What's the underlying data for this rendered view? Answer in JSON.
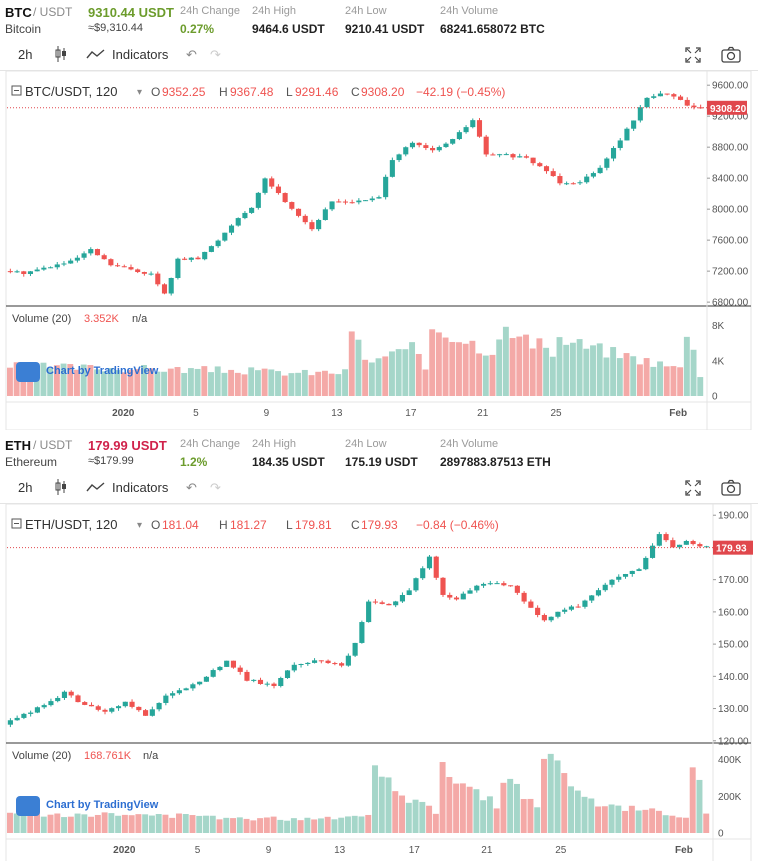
{
  "panels": [
    {
      "symbol": "BTC",
      "pair_suffix": "/ USDT",
      "price": "9310.44 USDT",
      "price_color": "#6c9c2c",
      "name": "Bitcoin",
      "price_approx": "≈$9,310.44",
      "change_label": "24h Change",
      "change_value": "0.27%",
      "change_color": "#6c9c2c",
      "high_label": "24h High",
      "high_value": "9464.6 USDT",
      "low_label": "24h Low",
      "low_value": "9210.41 USDT",
      "volume_label": "24h Volume",
      "volume_value": "68241.658072 BTC",
      "toolbar": {
        "interval": "2h",
        "indicators": "Indicators"
      },
      "legend": {
        "symbol": "BTC/USDT, 120",
        "o_label": "O",
        "o": "9352.25",
        "h_label": "H",
        "h": "9367.48",
        "l_label": "L",
        "l": "9291.46",
        "c_label": "C",
        "c": "9308.20",
        "change": "−42.19 (−0.45%)"
      },
      "volume_legend": {
        "label": "Volume (20)",
        "value": "3.352K",
        "extra": "n/a"
      },
      "last_price_tag": "9308.20",
      "price_axis": [
        "9600.00",
        "9200.00",
        "8800.00",
        "8400.00",
        "8000.00",
        "7600.00",
        "7200.00",
        "6800.00"
      ],
      "volume_axis": [
        "8K",
        "4K",
        "0"
      ],
      "time_axis": [
        "2020",
        "5",
        "9",
        "13",
        "17",
        "21",
        "25",
        "Feb"
      ],
      "watermark": "Chart by TradingView"
    },
    {
      "symbol": "ETH",
      "pair_suffix": "/ USDT",
      "price": "179.99 USDT",
      "price_color": "#d0224b",
      "name": "Ethereum",
      "price_approx": "≈$179.99",
      "change_label": "24h Change",
      "change_value": "1.2%",
      "change_color": "#6c9c2c",
      "high_label": "24h High",
      "high_value": "184.35 USDT",
      "low_label": "24h Low",
      "low_value": "175.19 USDT",
      "volume_label": "24h Volume",
      "volume_value": "2897883.87513 ETH",
      "toolbar": {
        "interval": "2h",
        "indicators": "Indicators"
      },
      "legend": {
        "symbol": "ETH/USDT, 120",
        "o_label": "O",
        "o": "181.04",
        "h_label": "H",
        "h": "181.27",
        "l_label": "L",
        "l": "179.81",
        "c_label": "C",
        "c": "179.93",
        "change": "−0.84 (−0.46%)"
      },
      "volume_legend": {
        "label": "Volume (20)",
        "value": "168.761K",
        "extra": "n/a"
      },
      "last_price_tag": "179.93",
      "price_axis": [
        "190.00",
        "180.00",
        "170.00",
        "160.00",
        "150.00",
        "140.00",
        "130.00",
        "120.00"
      ],
      "volume_axis": [
        "400K",
        "200K",
        "0"
      ],
      "time_axis": [
        "2020",
        "5",
        "9",
        "13",
        "17",
        "21",
        "25",
        "Feb"
      ],
      "watermark": "Chart by TradingView"
    }
  ],
  "colors": {
    "up": "#26a69a",
    "down": "#ef5350",
    "up_vol": "#a5d6c9",
    "down_vol": "#f4a9a7",
    "lastline": "#e0474c"
  },
  "chart_data": [
    {
      "type": "candlestick",
      "symbol": "BTC/USDT",
      "interval": "120",
      "y_range": [
        6750,
        9680
      ],
      "x_categories": [
        "2020",
        "5",
        "9",
        "13",
        "17",
        "21",
        "25",
        "Feb"
      ],
      "close_path": [
        [
          0,
          7200
        ],
        [
          3,
          7180
        ],
        [
          6,
          7240
        ],
        [
          10,
          7320
        ],
        [
          13,
          7470
        ],
        [
          16,
          7280
        ],
        [
          19,
          7220
        ],
        [
          22,
          7160
        ],
        [
          24,
          6900
        ],
        [
          26,
          7350
        ],
        [
          29,
          7360
        ],
        [
          32,
          7600
        ],
        [
          35,
          7900
        ],
        [
          37,
          8000
        ],
        [
          39,
          8400
        ],
        [
          42,
          8100
        ],
        [
          46,
          7750
        ],
        [
          49,
          8100
        ],
        [
          53,
          8100
        ],
        [
          56,
          8150
        ],
        [
          58,
          8650
        ],
        [
          61,
          8850
        ],
        [
          64,
          8750
        ],
        [
          67,
          8900
        ],
        [
          70,
          9150
        ],
        [
          72,
          8700
        ],
        [
          75,
          8700
        ],
        [
          78,
          8650
        ],
        [
          81,
          8500
        ],
        [
          83,
          8350
        ],
        [
          86,
          8350
        ],
        [
          89,
          8550
        ],
        [
          92,
          8900
        ],
        [
          94,
          9150
        ],
        [
          96,
          9450
        ],
        [
          99,
          9500
        ],
        [
          101,
          9400
        ],
        [
          103,
          9308
        ]
      ],
      "volume_range": [
        0,
        10000
      ],
      "volume_path": [
        [
          0,
          3500
        ],
        [
          20,
          3200
        ],
        [
          34,
          3000
        ],
        [
          43,
          2700
        ],
        [
          50,
          2800
        ],
        [
          51,
          8200
        ],
        [
          53,
          4000
        ],
        [
          60,
          5500
        ],
        [
          62,
          3200
        ],
        [
          63,
          8300
        ],
        [
          72,
          5200
        ],
        [
          73,
          7800
        ],
        [
          81,
          5200
        ],
        [
          82,
          6600
        ],
        [
          100,
          3200
        ],
        [
          101,
          8000
        ],
        [
          103,
          2500
        ]
      ],
      "last_price": 9308.2
    },
    {
      "type": "candlestick",
      "symbol": "ETH/USDT",
      "interval": "120",
      "y_range": [
        119,
        191
      ],
      "x_categories": [
        "2020",
        "5",
        "9",
        "13",
        "17",
        "21",
        "25",
        "Feb"
      ],
      "close_path": [
        [
          0,
          125
        ],
        [
          3,
          128
        ],
        [
          6,
          131
        ],
        [
          9,
          135
        ],
        [
          12,
          131
        ],
        [
          15,
          129
        ],
        [
          18,
          132
        ],
        [
          21,
          128
        ],
        [
          24,
          134
        ],
        [
          27,
          136
        ],
        [
          30,
          140
        ],
        [
          33,
          145
        ],
        [
          36,
          139
        ],
        [
          40,
          137
        ],
        [
          43,
          144
        ],
        [
          47,
          145
        ],
        [
          50,
          143
        ],
        [
          52,
          150
        ],
        [
          54,
          163
        ],
        [
          57,
          162
        ],
        [
          60,
          167
        ],
        [
          63,
          177
        ],
        [
          65,
          165
        ],
        [
          67,
          164
        ],
        [
          71,
          169
        ],
        [
          75,
          168
        ],
        [
          78,
          161
        ],
        [
          80,
          157
        ],
        [
          82,
          160
        ],
        [
          85,
          162
        ],
        [
          88,
          167
        ],
        [
          91,
          171
        ],
        [
          94,
          173
        ],
        [
          97,
          184
        ],
        [
          99,
          180
        ],
        [
          101,
          182
        ],
        [
          103,
          180
        ]
      ],
      "volume_range": [
        0,
        480000
      ],
      "volume_path": [
        [
          0,
          110000
        ],
        [
          20,
          100000
        ],
        [
          40,
          80000
        ],
        [
          53,
          95000
        ],
        [
          54,
          420000
        ],
        [
          58,
          220000
        ],
        [
          63,
          120000
        ],
        [
          64,
          380000
        ],
        [
          72,
          160000
        ],
        [
          73,
          310000
        ],
        [
          78,
          150000
        ],
        [
          79,
          460000
        ],
        [
          85,
          180000
        ],
        [
          100,
          90000
        ],
        [
          101,
          400000
        ],
        [
          103,
          120000
        ]
      ],
      "last_price": 179.93
    }
  ]
}
